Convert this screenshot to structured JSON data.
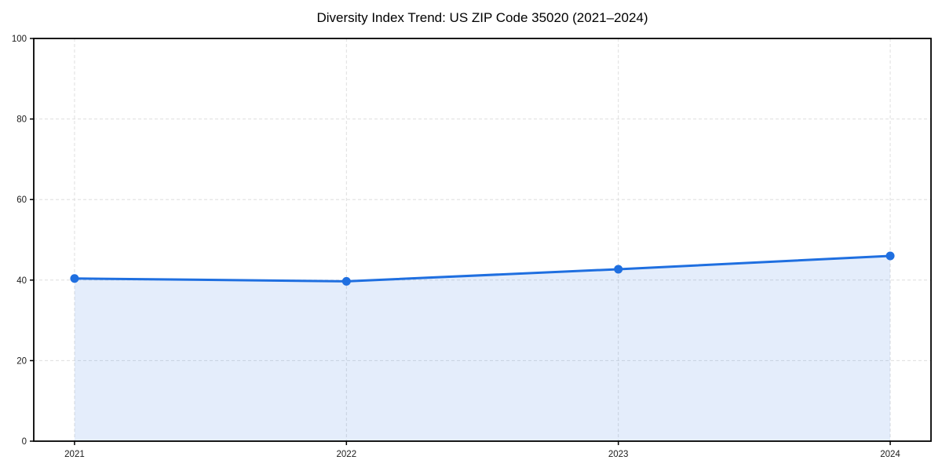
{
  "chart_data": {
    "type": "line",
    "title": "Diversity Index Trend: US ZIP Code 35020 (2021–2024)",
    "series_name": "Diversity Index",
    "x": [
      2021,
      2022,
      2023,
      2024
    ],
    "values": [
      40.4,
      39.7,
      42.7,
      46.0
    ],
    "xlabel": "",
    "ylabel": "",
    "ylim": [
      0,
      100
    ],
    "yticks": [
      0,
      20,
      40,
      60,
      80,
      100
    ],
    "xticks": [
      2021,
      2022,
      2023,
      2024
    ],
    "grid": true,
    "grid_style": "dashed",
    "legend": "none",
    "line_color": "#1f6fe0",
    "marker": "circle",
    "area_fill": true,
    "area_opacity": 0.12,
    "frame_color": "#000000"
  }
}
